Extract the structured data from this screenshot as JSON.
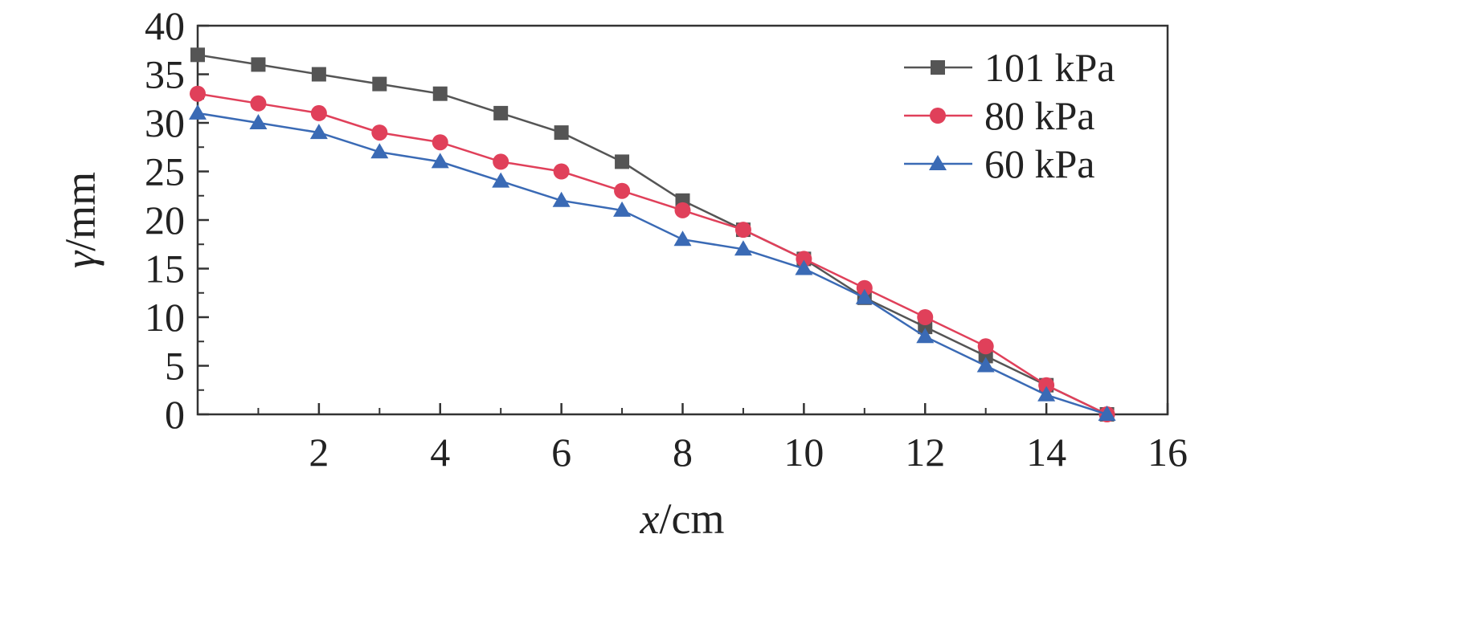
{
  "chart_data": {
    "type": "line",
    "x_title": {
      "var": "x",
      "unit": "/cm"
    },
    "y_title": {
      "var": "γ",
      "unit": "/mm"
    },
    "xlim": [
      0,
      16
    ],
    "ylim": [
      0,
      40
    ],
    "x_ticks": [
      2,
      4,
      6,
      8,
      10,
      12,
      14,
      16
    ],
    "y_ticks": [
      0,
      5,
      10,
      15,
      20,
      25,
      30,
      35,
      40
    ],
    "grid": false,
    "legend_position": "top-right",
    "x": [
      0,
      1,
      2,
      3,
      4,
      5,
      6,
      7,
      8,
      9,
      10,
      11,
      12,
      13,
      14,
      15
    ],
    "series": [
      {
        "name": "101 kPa",
        "color": "#555555",
        "marker": "square",
        "values": [
          37,
          36,
          35,
          34,
          33,
          31,
          29,
          26,
          22,
          19,
          16,
          12,
          9,
          6,
          3,
          0
        ]
      },
      {
        "name": "80 kPa",
        "color": "#e0405a",
        "marker": "circle",
        "values": [
          33,
          32,
          31,
          29,
          28,
          26,
          25,
          23,
          21,
          19,
          16,
          13,
          10,
          7,
          3,
          0
        ]
      },
      {
        "name": "60 kPa",
        "color": "#3a6ab5",
        "marker": "triangle",
        "values": [
          31,
          30,
          29,
          27,
          26,
          24,
          22,
          21,
          18,
          17,
          15,
          12,
          8,
          5,
          2,
          0
        ]
      }
    ]
  }
}
